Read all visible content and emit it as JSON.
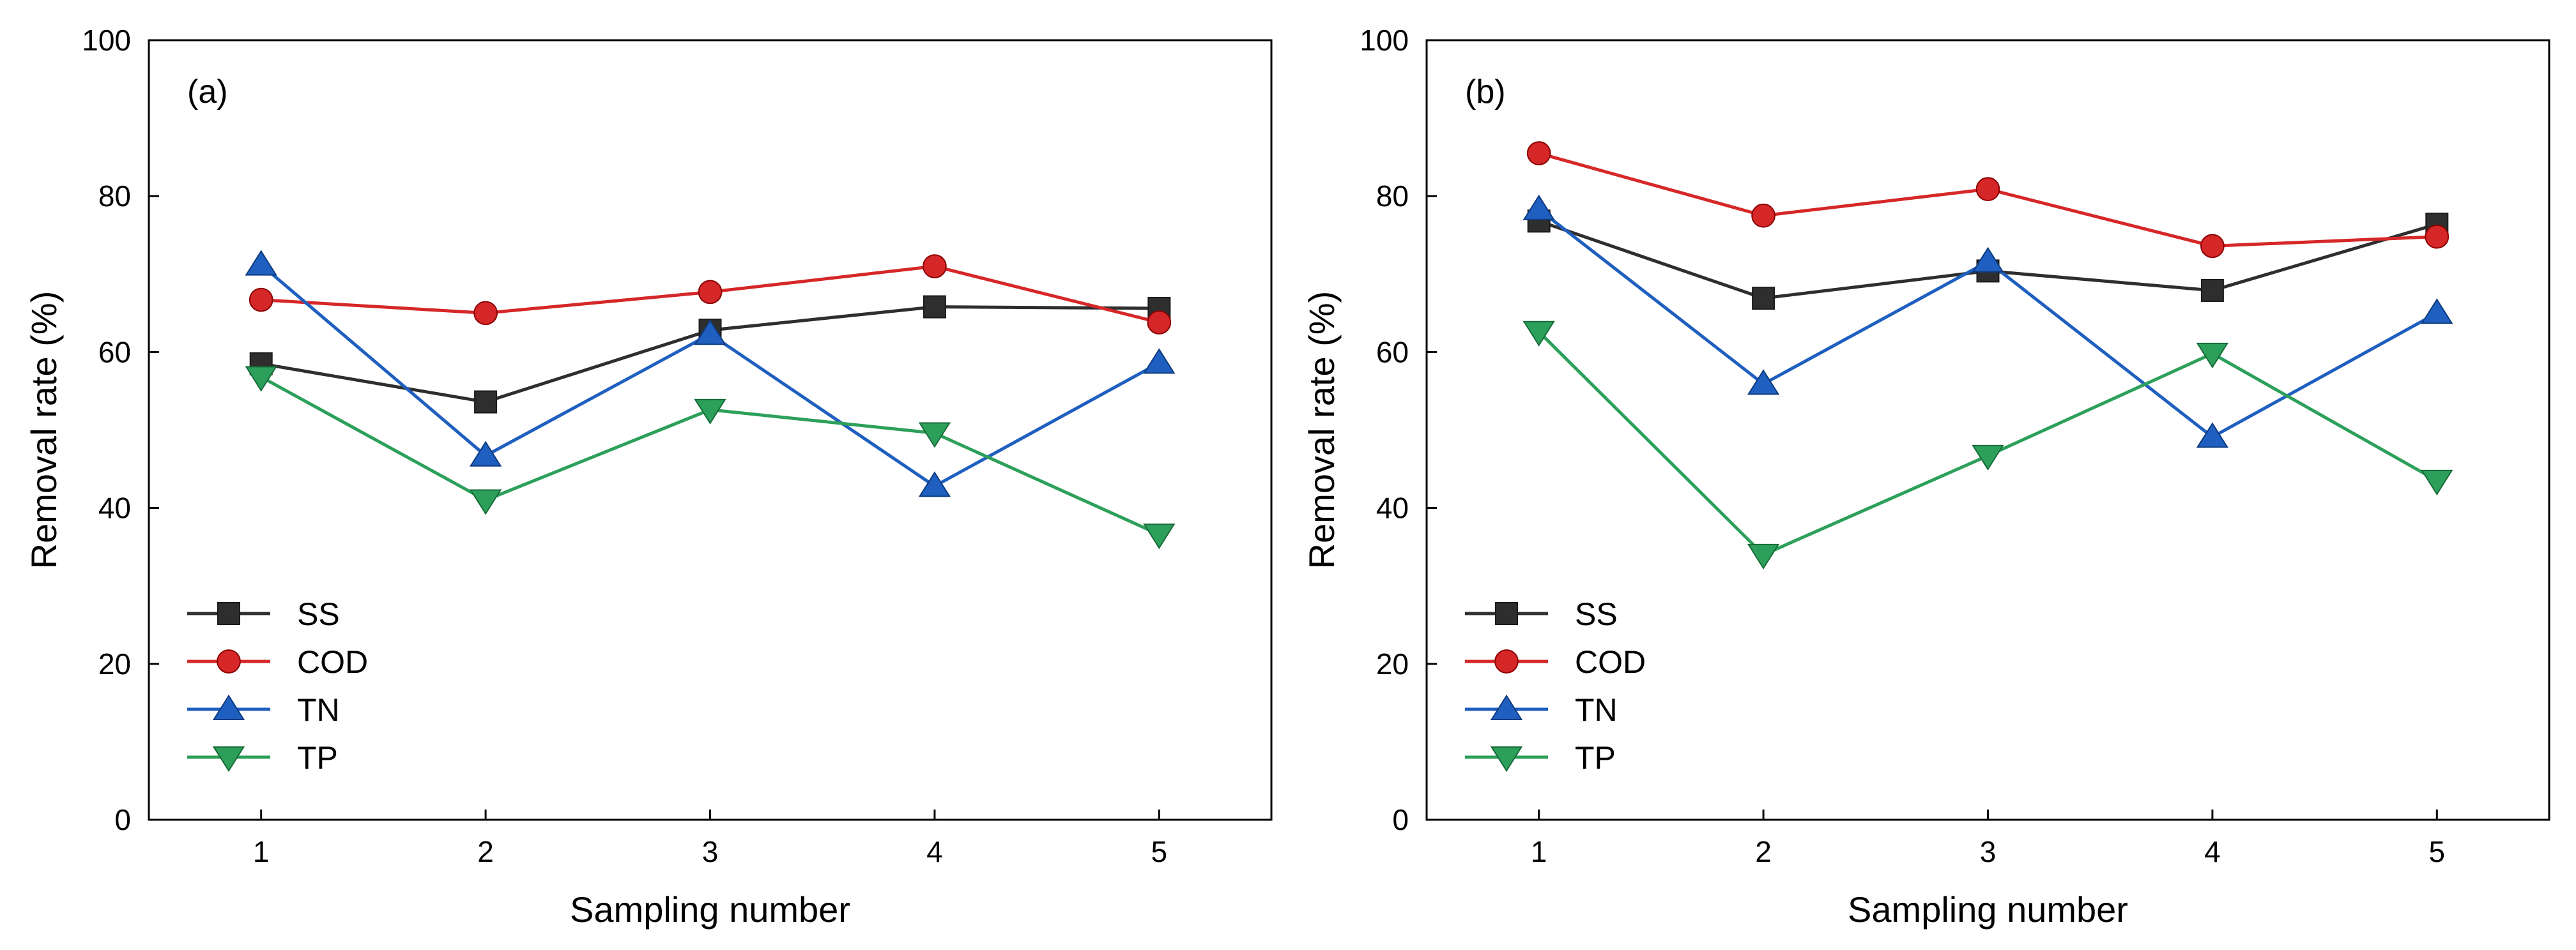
{
  "chart_data": [
    {
      "type": "line",
      "panel_label": "(a)",
      "title": "",
      "xlabel": "Sampling number",
      "ylabel": "Removal rate (%)",
      "x": [
        1,
        2,
        3,
        4,
        5
      ],
      "xticks": [
        "1",
        "2",
        "3",
        "4",
        "5"
      ],
      "xlim": [
        0.5,
        5.5
      ],
      "ylim": [
        0,
        100
      ],
      "yticks": [
        "0",
        "20",
        "40",
        "60",
        "80",
        "100"
      ],
      "legend_position": "bottom-left",
      "series": [
        {
          "name": "SS",
          "marker": "square",
          "color": "#2e2e2e",
          "values": [
            58.5,
            53.6,
            62.8,
            65.8,
            65.6
          ]
        },
        {
          "name": "COD",
          "marker": "circle",
          "color": "#d62728",
          "values": [
            66.7,
            65.0,
            67.7,
            71.0,
            63.8
          ]
        },
        {
          "name": "TN",
          "marker": "triangle-up",
          "color": "#1f5fbf",
          "values": [
            71.2,
            46.7,
            62.3,
            42.8,
            58.6
          ]
        },
        {
          "name": "TP",
          "marker": "triangle-down",
          "color": "#2ca05a",
          "values": [
            56.8,
            41.0,
            52.6,
            49.6,
            36.6
          ]
        }
      ]
    },
    {
      "type": "line",
      "panel_label": "(b)",
      "title": "",
      "xlabel": "Sampling number",
      "ylabel": "Removal rate (%)",
      "x": [
        1,
        2,
        3,
        4,
        5
      ],
      "xticks": [
        "1",
        "2",
        "3",
        "4",
        "5"
      ],
      "xlim": [
        0.5,
        5.5
      ],
      "ylim": [
        0,
        100
      ],
      "yticks": [
        "0",
        "20",
        "40",
        "60",
        "80",
        "100"
      ],
      "legend_position": "bottom-left",
      "series": [
        {
          "name": "SS",
          "marker": "square",
          "color": "#2e2e2e",
          "values": [
            76.8,
            66.9,
            70.4,
            67.9,
            76.4
          ]
        },
        {
          "name": "COD",
          "marker": "circle",
          "color": "#d62728",
          "values": [
            85.5,
            77.5,
            80.9,
            73.6,
            74.8
          ]
        },
        {
          "name": "TN",
          "marker": "triangle-up",
          "color": "#1f5fbf",
          "values": [
            78.3,
            55.9,
            71.6,
            49.1,
            65.0
          ]
        },
        {
          "name": "TP",
          "marker": "triangle-down",
          "color": "#2ca05a",
          "values": [
            62.6,
            34.0,
            46.7,
            59.8,
            43.5
          ]
        }
      ]
    }
  ]
}
